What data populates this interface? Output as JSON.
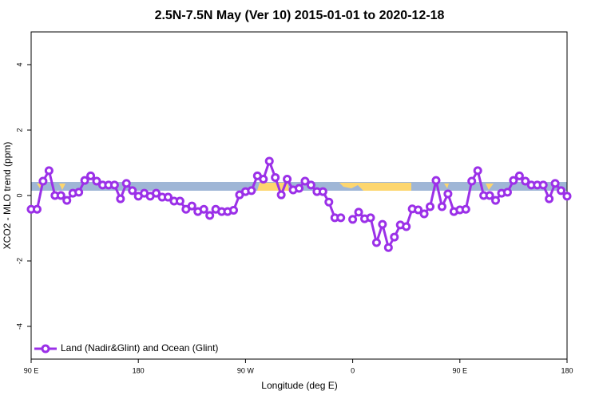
{
  "chart_data": {
    "type": "line",
    "title": "2.5N-7.5N May (Ver 10)   2015-01-01 to 2020-12-18",
    "x_label": "Longitude (deg E)",
    "y_label": "XCO2 - MLO trend (ppm)",
    "x": [
      90,
      95,
      100,
      105,
      110,
      115,
      120,
      125,
      130,
      135,
      140,
      145,
      150,
      155,
      160,
      165,
      170,
      175,
      180,
      185,
      190,
      195,
      200,
      205,
      210,
      215,
      220,
      225,
      230,
      235,
      240,
      245,
      250,
      255,
      260,
      265,
      270,
      275,
      280,
      285,
      290,
      295,
      300,
      305,
      310,
      315,
      320,
      325,
      330,
      335,
      340,
      345,
      350,
      355,
      360,
      365,
      370,
      375,
      380,
      385,
      390,
      395,
      400,
      405,
      410,
      415,
      420,
      425,
      430,
      435,
      440,
      445,
      450,
      455,
      460,
      465,
      470,
      475,
      480,
      485,
      490,
      495,
      500,
      505,
      510,
      515,
      520,
      525,
      530,
      535,
      540
    ],
    "series": [
      {
        "name": "Land (Nadir&Glint) and Ocean (Glint)",
        "color": "#9b30e8",
        "values": [
          -0.42,
          -0.42,
          0.44,
          0.76,
          0,
          0,
          -0.15,
          0.07,
          0.1,
          0.46,
          0.6,
          0.44,
          0.32,
          0.32,
          0.32,
          -0.1,
          0.37,
          0.15,
          -0.02,
          0.07,
          -0.02,
          0.07,
          -0.05,
          -0.05,
          -0.17,
          -0.17,
          -0.42,
          -0.32,
          -0.49,
          -0.42,
          -0.61,
          -0.42,
          -0.49,
          -0.49,
          -0.45,
          0.02,
          0.12,
          0.15,
          0.6,
          0.5,
          1.05,
          0.55,
          0.02,
          0.5,
          0.17,
          0.22,
          0.44,
          0.32,
          0.12,
          0.12,
          -0.2,
          -0.68,
          -0.68,
          null,
          -0.73,
          -0.51,
          -0.71,
          -0.68,
          -1.44,
          -0.88,
          -1.59,
          -1.27,
          -0.9,
          -0.95,
          -0.41,
          -0.44,
          -0.56,
          -0.34,
          0.46,
          -0.34,
          0.05,
          -0.49,
          -0.44,
          -0.42,
          0.44,
          0.76,
          0,
          0,
          -0.15,
          0.07,
          0.1,
          0.46,
          0.6,
          0.44,
          0.32,
          0.32,
          0.32,
          -0.1,
          0.37,
          0.15,
          -0.02
        ]
      }
    ],
    "xlim": [
      90,
      540
    ],
    "xticks": [
      {
        "value": 90,
        "label": "90 E"
      },
      180,
      {
        "value": 270,
        "label": "90 W"
      },
      {
        "value": 360,
        "label": "0"
      },
      {
        "value": 450,
        "label": "90 E"
      },
      {
        "value": 540,
        "label": "180"
      }
    ],
    "ylim": [
      -5,
      5
    ],
    "yticks": [
      -4,
      -2,
      0,
      2,
      4
    ],
    "legend_position": "lower left"
  }
}
